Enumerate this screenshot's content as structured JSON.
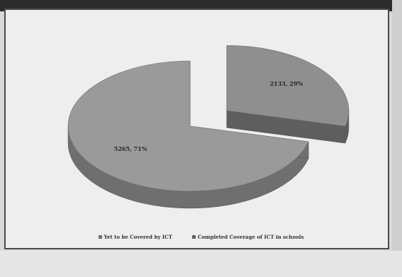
{
  "chart_data": {
    "type": "pie",
    "title": "",
    "three_d": true,
    "exploded_slice": 1,
    "slices": [
      {
        "label": "Yet to be Covered by ICT",
        "value": 5265,
        "percent": 71,
        "data_label": "5265, 71%",
        "color": "#9a9a9a",
        "side_color": "#6f6f6f"
      },
      {
        "label": "Completed Coverage of ICT in schools",
        "value": 2133,
        "percent": 29,
        "data_label": "2133, 29%",
        "color": "#8f8f8f",
        "side_color": "#5e5e5e"
      }
    ],
    "legend_position": "bottom"
  }
}
